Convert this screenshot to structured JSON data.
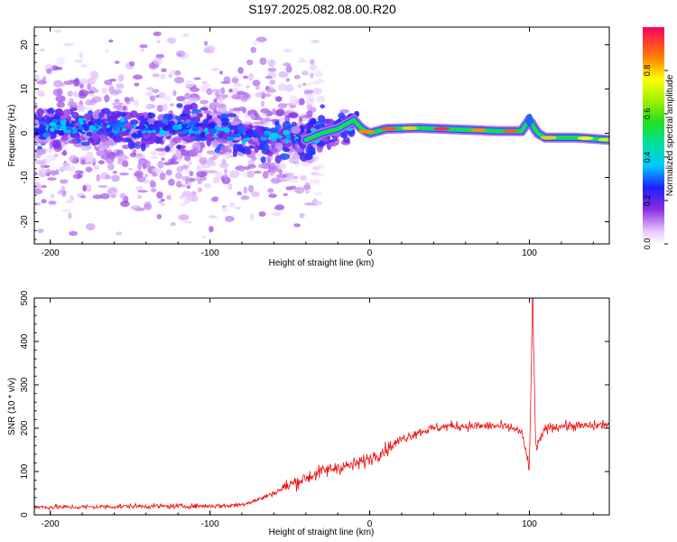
{
  "title": "S197.2025.082.08.00.R20",
  "chart_data": [
    {
      "type": "heatmap",
      "xlabel": "Height of straight line (km)",
      "ylabel": "Frequency (Hz)",
      "xlim": [
        -210,
        150
      ],
      "ylim": [
        -25,
        24
      ],
      "xticks": [
        -200,
        -100,
        0,
        100
      ],
      "yticks": [
        -20,
        -10,
        0,
        10,
        20
      ],
      "colorbar": {
        "label": "Normalized spectral amplitude",
        "range": [
          0,
          1
        ],
        "ticks": [
          "0.0",
          "0.2",
          "0.4",
          "0.6",
          "0.8"
        ]
      },
      "ridge": {
        "x": [
          -210,
          -180,
          -150,
          -120,
          -90,
          -60,
          -40,
          -30,
          -20,
          -10,
          -5,
          0,
          10,
          30,
          60,
          80,
          95,
          100,
          105,
          110,
          130,
          150
        ],
        "y": [
          1,
          1.5,
          1,
          1.5,
          0.5,
          -1,
          -1.5,
          0,
          1,
          3,
          1,
          0,
          1,
          1.2,
          0.8,
          0.5,
          0.5,
          3,
          0,
          -1,
          -1,
          -1.5
        ]
      },
      "grid": false
    },
    {
      "type": "line",
      "xlabel": "Height of straight line (km)",
      "ylabel": "SNR (10 * v/v)",
      "xlim": [
        -210,
        150
      ],
      "ylim": [
        0,
        500
      ],
      "xticks": [
        -200,
        -100,
        0,
        100
      ],
      "yticks": [
        0,
        100,
        200,
        300,
        400,
        500
      ],
      "series": [
        {
          "color": "#ee1111",
          "x": [
            -210,
            -180,
            -150,
            -120,
            -90,
            -80,
            -70,
            -60,
            -50,
            -40,
            -30,
            -20,
            -10,
            0,
            10,
            20,
            30,
            40,
            50,
            60,
            70,
            80,
            90,
            95,
            100,
            102,
            104,
            110,
            120,
            130,
            140,
            150
          ],
          "values": [
            18,
            18,
            20,
            20,
            21,
            24,
            35,
            50,
            70,
            85,
            100,
            110,
            115,
            130,
            150,
            175,
            190,
            200,
            205,
            205,
            205,
            205,
            200,
            190,
            110,
            500,
            150,
            200,
            205,
            205,
            205,
            210
          ]
        }
      ],
      "grid": false
    }
  ]
}
